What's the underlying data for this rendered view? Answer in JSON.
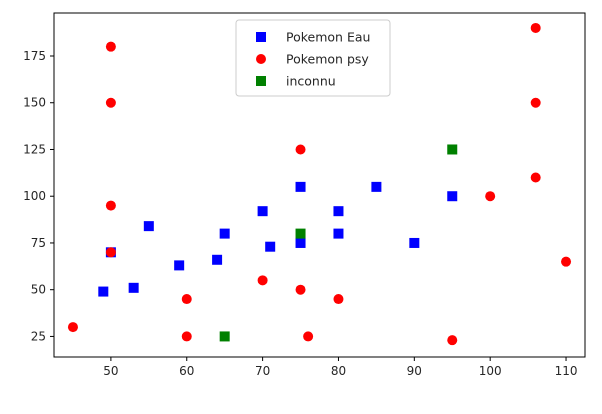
{
  "chart_data": {
    "type": "scatter",
    "xlim": [
      42.5,
      112.5
    ],
    "ylim": [
      14,
      198
    ],
    "x_ticks": [
      50,
      60,
      70,
      80,
      90,
      100,
      110
    ],
    "y_ticks": [
      25,
      50,
      75,
      100,
      125,
      150,
      175
    ],
    "grid": false,
    "legend_position": "top-center",
    "series": [
      {
        "name": "Pokemon Eau",
        "marker": "square",
        "color": "#0000ff",
        "points": [
          [
            49,
            49
          ],
          [
            50,
            70
          ],
          [
            53,
            51
          ],
          [
            55,
            84
          ],
          [
            59,
            63
          ],
          [
            64,
            66
          ],
          [
            65,
            80
          ],
          [
            70,
            92
          ],
          [
            71,
            73
          ],
          [
            75,
            75
          ],
          [
            75,
            105
          ],
          [
            80,
            80
          ],
          [
            80,
            92
          ],
          [
            85,
            105
          ],
          [
            90,
            75
          ],
          [
            95,
            100
          ]
        ]
      },
      {
        "name": "Pokemon psy",
        "marker": "circle",
        "color": "#ff0000",
        "points": [
          [
            45,
            30
          ],
          [
            50,
            70
          ],
          [
            50,
            95
          ],
          [
            50,
            150
          ],
          [
            50,
            180
          ],
          [
            60,
            25
          ],
          [
            60,
            45
          ],
          [
            70,
            55
          ],
          [
            75,
            50
          ],
          [
            75,
            125
          ],
          [
            76,
            25
          ],
          [
            80,
            45
          ],
          [
            95,
            23
          ],
          [
            100,
            100
          ],
          [
            106,
            110
          ],
          [
            106,
            150
          ],
          [
            106,
            190
          ],
          [
            110,
            65
          ]
        ]
      },
      {
        "name": "inconnu",
        "marker": "square",
        "color": "#008000",
        "points": [
          [
            65,
            25
          ],
          [
            75,
            80
          ],
          [
            95,
            125
          ]
        ]
      }
    ]
  }
}
